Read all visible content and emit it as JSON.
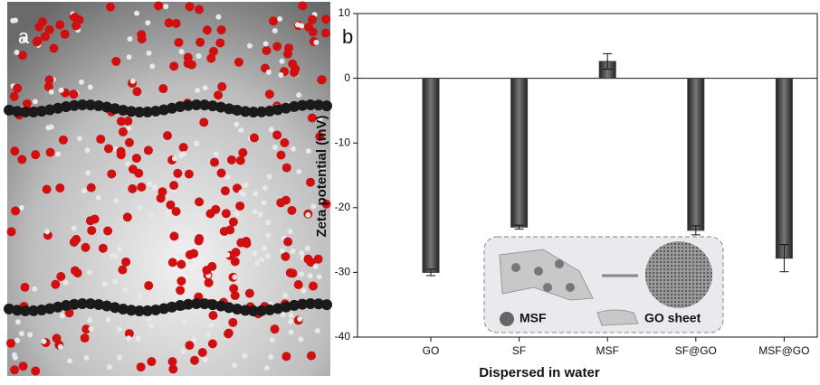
{
  "panel_a_label": "a",
  "chart_data": {
    "type": "bar",
    "panel_label": "b",
    "categories": [
      "GO",
      "SF",
      "MSF",
      "SF@GO",
      "MSF@GO"
    ],
    "values": [
      -30,
      -23,
      2.6,
      -23.5,
      -27.8
    ],
    "errors": [
      0.5,
      0.3,
      1.2,
      0.7,
      2.1
    ],
    "color": "#3a3a3a",
    "x_label": "Dispersed in water",
    "y_label": "Zeta potential (mV)",
    "ylim": [
      -40,
      10
    ],
    "yticks": [
      -40,
      -30,
      -20,
      -10,
      0,
      10
    ],
    "inset_labels": [
      "MSF",
      "GO sheet"
    ]
  }
}
